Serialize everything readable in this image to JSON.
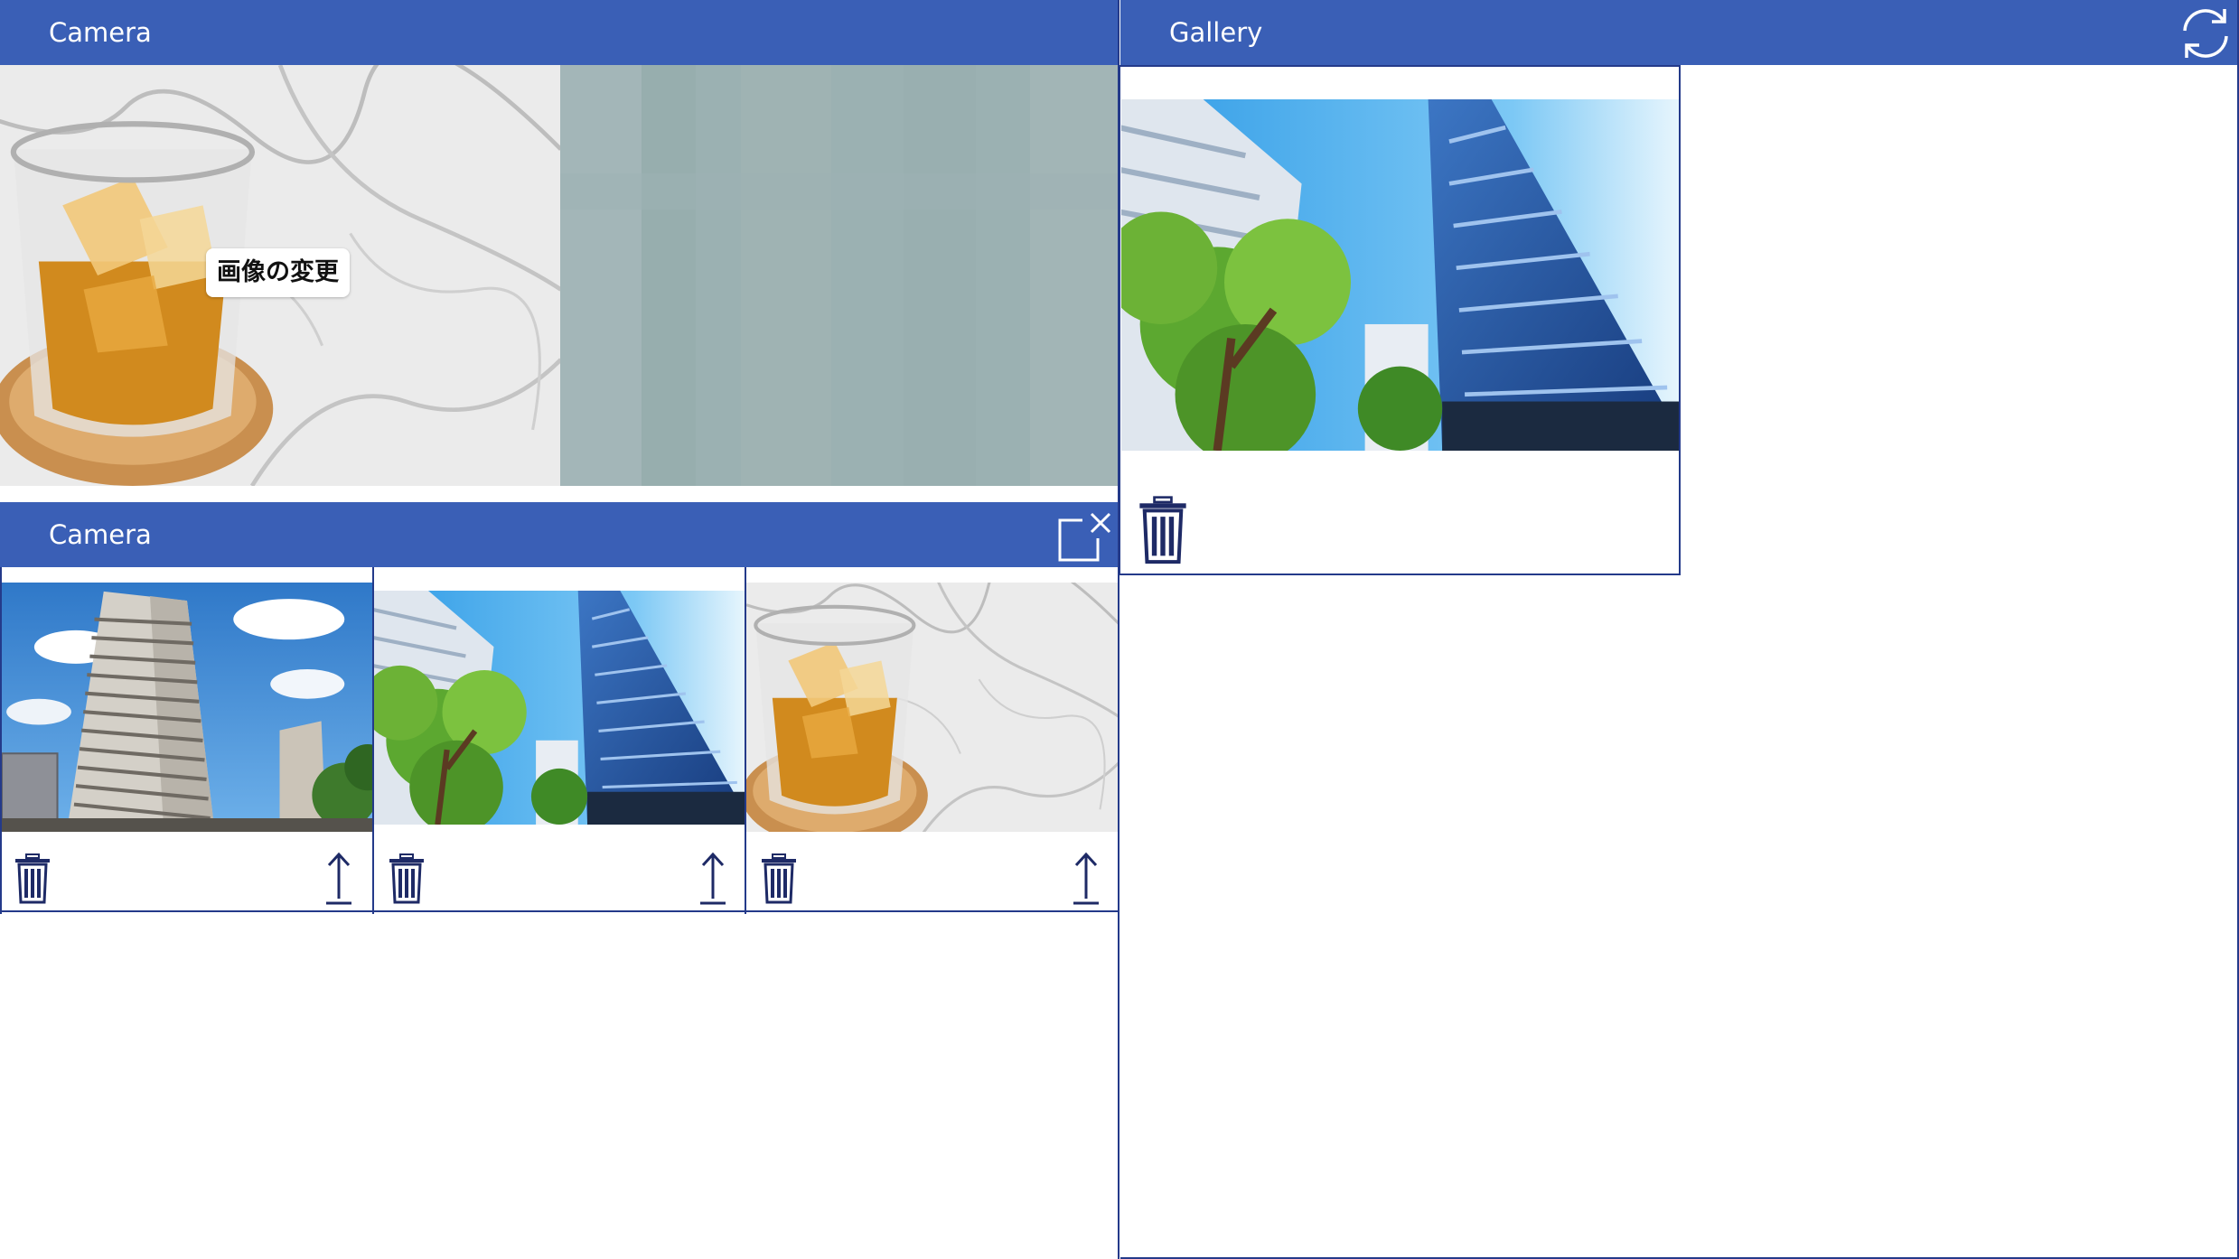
{
  "camera_panel": {
    "title": "Camera",
    "change_image_label": "画像の変更"
  },
  "camera_list_panel": {
    "title": "Camera",
    "items": [
      {
        "photo": "apartment-building-photo"
      },
      {
        "photo": "glass-tower-photo"
      },
      {
        "photo": "whiskey-glass-photo"
      }
    ]
  },
  "gallery_panel": {
    "title": "Gallery",
    "items": [
      {
        "photo": "glass-tower-photo"
      }
    ]
  },
  "colors": {
    "header": "#3a5fb6",
    "border": "#243a8a",
    "icon": "#1e2a66"
  },
  "icons": [
    "refresh-icon",
    "close-popout-icon",
    "trash-icon",
    "upload-arrow-icon"
  ]
}
